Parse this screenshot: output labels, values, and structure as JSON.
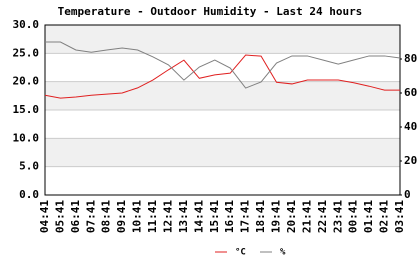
{
  "chart_data": {
    "type": "line",
    "title": "Temperature - Outdoor Humidity - Last 24 hours",
    "categories": [
      "04:41",
      "05:41",
      "06:41",
      "07:41",
      "08:41",
      "09:41",
      "10:41",
      "11:41",
      "12:41",
      "13:41",
      "14:41",
      "15:41",
      "16:41",
      "17:41",
      "18:41",
      "19:41",
      "20:41",
      "21:41",
      "22:41",
      "23:41",
      "00:41",
      "01:41",
      "02:41",
      "03:41"
    ],
    "series": [
      {
        "name": "°C",
        "color": "#e02020",
        "values": [
          17.6,
          17.1,
          17.3,
          17.6,
          17.8,
          18.0,
          18.9,
          20.3,
          22.1,
          23.8,
          20.6,
          21.2,
          21.5,
          24.7,
          24.5,
          19.9,
          19.6,
          20.3,
          20.3,
          20.3,
          19.8,
          19.2,
          18.5,
          18.5
        ]
      },
      {
        "name": "%",
        "color": "#808080",
        "axis": "y2",
        "values": [
          90,
          90,
          85.3,
          84,
          85.3,
          86.5,
          85.3,
          81.2,
          76.5,
          67.6,
          75.3,
          79.4,
          74.7,
          62.9,
          66.5,
          77.6,
          81.8,
          81.8,
          79.4,
          77,
          79.4,
          81.8,
          81.8,
          80.6
        ]
      }
    ],
    "ylim": [
      0,
      30
    ],
    "yticks": [
      {
        "value": 0,
        "label": "0.0"
      },
      {
        "value": 5,
        "label": "5.0"
      },
      {
        "value": 10,
        "label": "10.0"
      },
      {
        "value": 15,
        "label": "15.0"
      },
      {
        "value": 20,
        "label": "20.0"
      },
      {
        "value": 25,
        "label": "25.0"
      },
      {
        "value": 30,
        "label": "30.0"
      }
    ],
    "y2lim": [
      0,
      100
    ],
    "y2ticks": [
      0,
      20,
      40,
      60,
      80
    ],
    "grid": true
  }
}
